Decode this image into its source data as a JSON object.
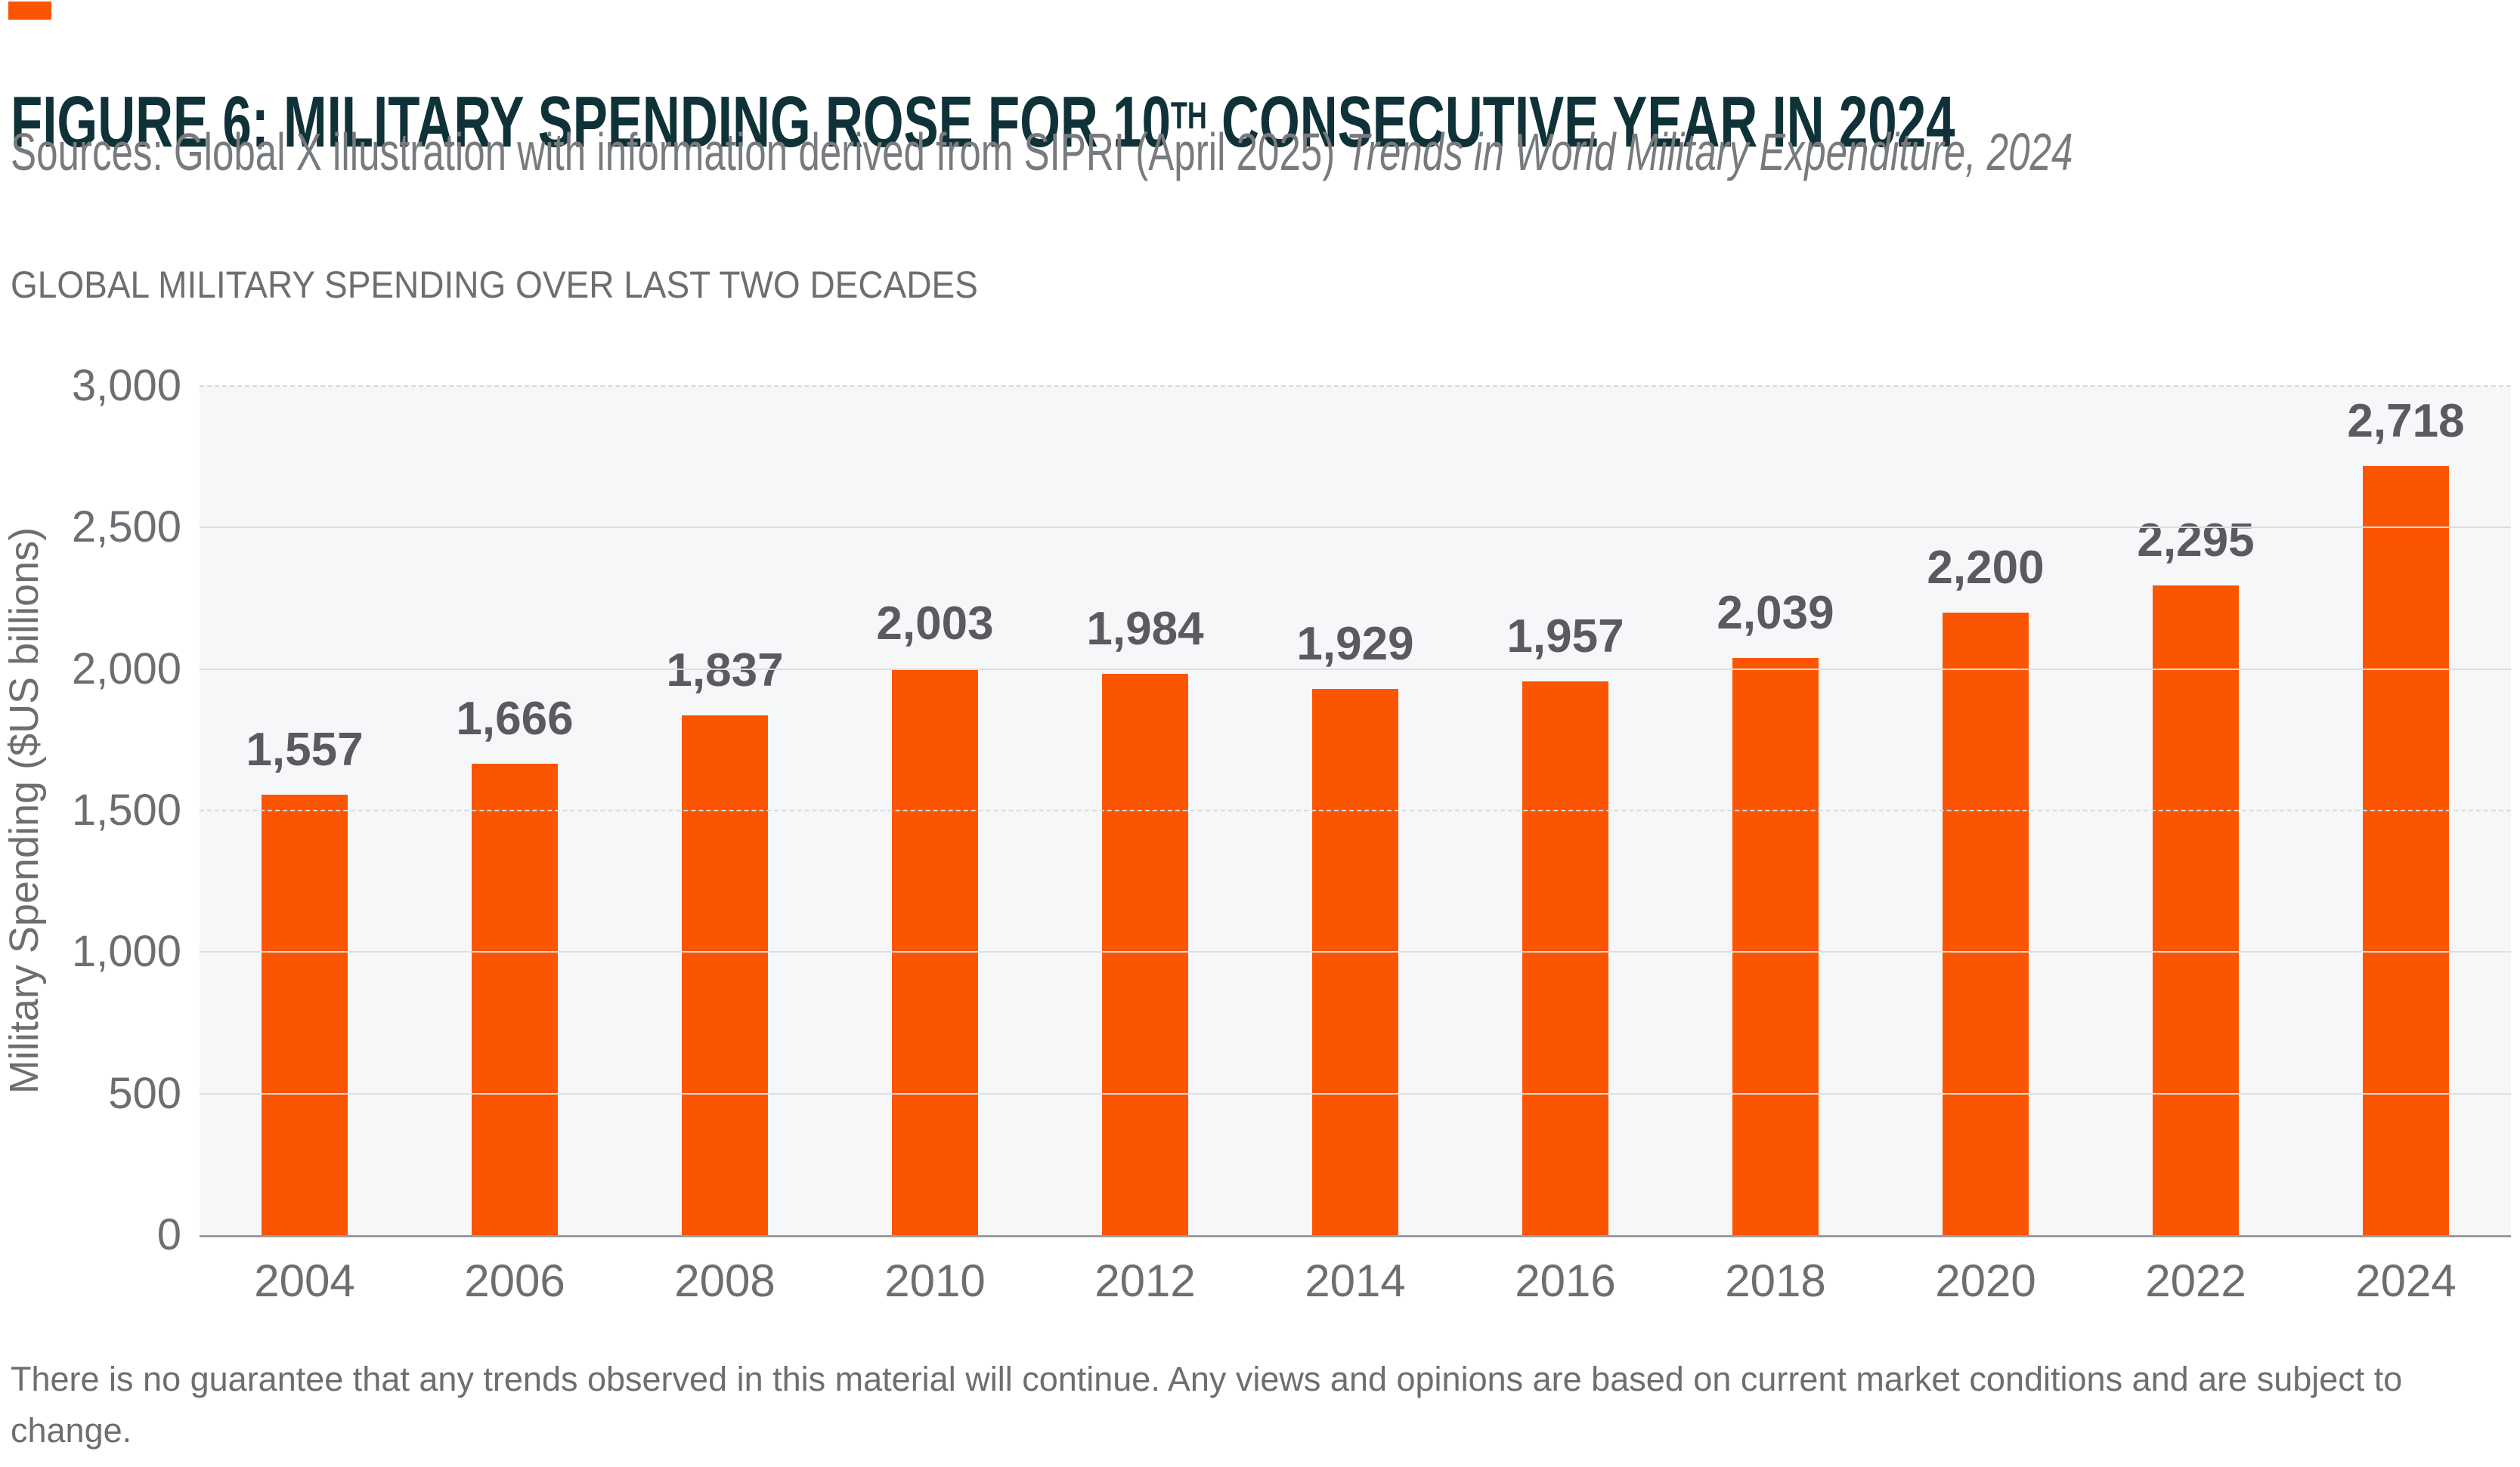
{
  "brand": {
    "accent_color": "#FC5502",
    "title_color": "#0F3238",
    "text_gray": "#6D6E71"
  },
  "header": {
    "title_part1": "FIGURE 6: MILITARY SPENDING ROSE FOR 10",
    "title_sup": "TH",
    "title_part2": " CONSECUTIVE YEAR IN 2024",
    "sources_prefix": "Sources: Global X illustration with information derived from SIPRI (April 2025) ",
    "sources_italic": "Trends in World Military Expenditure, 2024"
  },
  "chart_data": {
    "type": "bar",
    "title": "GLOBAL MILITARY SPENDING OVER LAST TWO DECADES",
    "categories": [
      "2004",
      "2006",
      "2008",
      "2010",
      "2012",
      "2014",
      "2016",
      "2018",
      "2020",
      "2022",
      "2024"
    ],
    "values": [
      1557,
      1666,
      1837,
      2003,
      1984,
      1929,
      1957,
      2039,
      2200,
      2295,
      2718
    ],
    "value_labels": [
      "1,557",
      "1,666",
      "1,837",
      "2,003",
      "1,984",
      "1,929",
      "1,957",
      "2,039",
      "2,200",
      "2,295",
      "2,718"
    ],
    "xlabel": "",
    "ylabel": "Military Spending ($US billions)",
    "ylim": [
      0,
      3000
    ],
    "yticks": [
      0,
      500,
      1000,
      1500,
      2000,
      2500,
      3000
    ],
    "ytick_labels": [
      "0",
      "500",
      "1,000",
      "1,500",
      "2,000",
      "2,500",
      "3,000"
    ],
    "bar_color": "#FC5502",
    "grid": true,
    "legend_position": "none",
    "plot_background": "#F6F7F9"
  },
  "footer": {
    "text": "There is no guarantee that any trends observed in this material will continue. Any views and opinions are based on current market conditions and are subject to change."
  }
}
